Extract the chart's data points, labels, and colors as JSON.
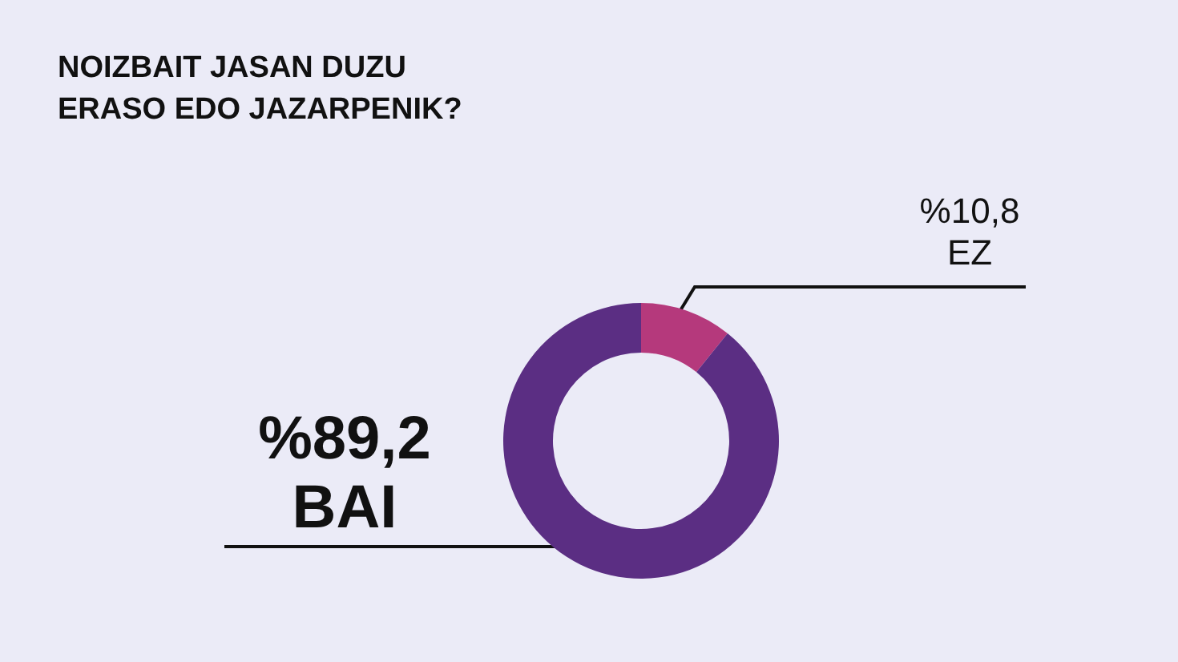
{
  "chart_data": {
    "type": "donut",
    "title": "NOIZBAIT JASAN DUZU ERASO EDO JAZARPENIK?",
    "categories": [
      "EZ",
      "BAI"
    ],
    "values": [
      10.8,
      89.2
    ],
    "colors": [
      "#b5397c",
      "#5b2e83"
    ],
    "value_labels": [
      "%10,8",
      "%89,2"
    ],
    "legend": false
  }
}
